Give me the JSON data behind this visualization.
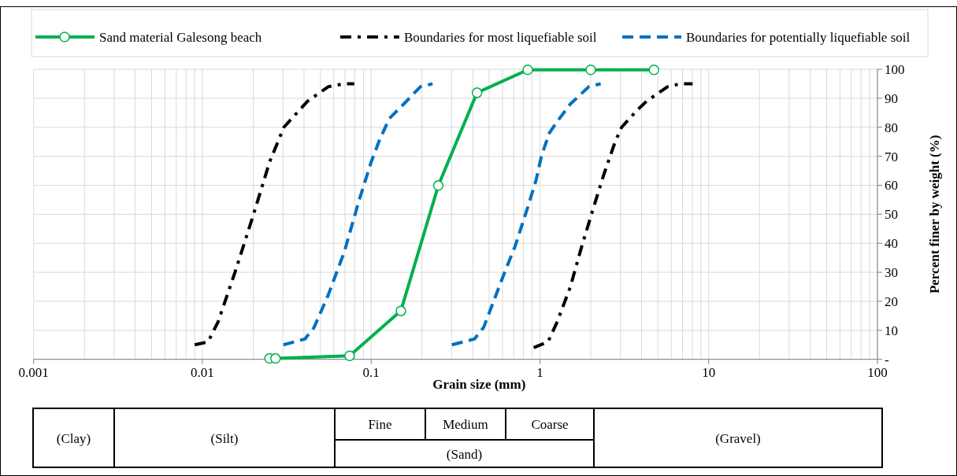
{
  "chart_data": {
    "type": "line",
    "xlabel": "Grain size (mm)",
    "ylabel": "Percent finer by weight (%)",
    "log": "x",
    "xlim": [
      0.001,
      100
    ],
    "xticks": [
      0.001,
      0.01,
      0.1,
      1,
      10,
      100
    ],
    "ylim": [
      0,
      100
    ],
    "yticks": [
      {
        "value": 0,
        "label": "-"
      },
      10,
      20,
      30,
      40,
      50,
      60,
      70,
      80,
      90,
      100
    ],
    "grid": true,
    "legend": "top",
    "series": [
      {
        "name": "Sand material Galesong beach",
        "color": "#00b050",
        "line_style": "solid",
        "marker": "circle",
        "x": [
          0.025,
          0.0271,
          0.0745,
          0.15,
          0.25,
          0.424,
          0.847,
          2.0,
          4.74
        ],
        "values": [
          0.3,
          0.3,
          1.2,
          16.7,
          59.9,
          91.9,
          99.8,
          99.8,
          99.8
        ]
      },
      {
        "name": "Boundaries for most liquefiable soil",
        "color": "#000000",
        "line_style": "dashdot",
        "marker": "none",
        "x": [
          0.009,
          0.0108,
          0.0124,
          0.0156,
          0.0201,
          0.025,
          0.0304,
          0.042,
          0.0558,
          0.0693,
          0.0794
        ],
        "values": [
          5,
          6,
          13,
          30,
          50,
          68,
          80,
          89,
          94,
          95,
          95
        ]
      },
      {
        "color": "#000000",
        "line_style": "dashdot",
        "marker": "none",
        "x": [
          0.918,
          1.117,
          1.267,
          1.515,
          1.75,
          2.02,
          2.37,
          2.79,
          3.05,
          3.78,
          4.29,
          5.72,
          6.83,
          8.03
        ],
        "values": [
          4,
          6,
          13,
          25,
          38,
          50,
          63,
          75,
          80,
          86,
          89,
          94,
          95,
          95
        ]
      },
      {
        "name": "Boundaries for potentially liquefiable soil",
        "color": "#0070c0",
        "line_style": "dashed",
        "marker": "none",
        "x": [
          0.0302,
          0.0405,
          0.0459,
          0.0555,
          0.0693,
          0.085,
          0.1,
          0.111,
          0.128,
          0.156,
          0.196,
          0.231
        ],
        "values": [
          5,
          7,
          11,
          22,
          37,
          55,
          68,
          75,
          83,
          88,
          94,
          95
        ]
      },
      {
        "color": "#0070c0",
        "line_style": "dashed",
        "marker": "none",
        "x": [
          0.301,
          0.409,
          0.464,
          0.618,
          0.713,
          0.853,
          0.951,
          1.02,
          1.137,
          1.267,
          1.514,
          1.95,
          2.29
        ],
        "values": [
          5,
          7,
          11,
          30,
          39,
          53,
          62,
          70,
          78,
          82,
          88,
          94,
          95
        ]
      }
    ],
    "annotations": [
      "(Clay)",
      "(Silt)",
      "Fine",
      "Medium",
      "Coarse",
      "(Sand)",
      "(Gravel)"
    ]
  }
}
